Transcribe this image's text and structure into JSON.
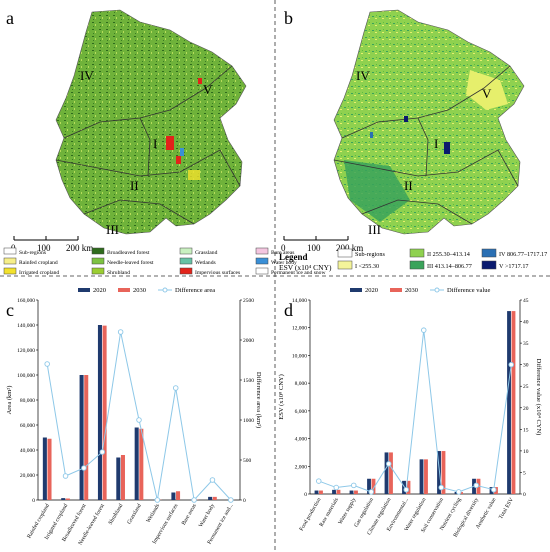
{
  "panels": {
    "a": {
      "letter": "a",
      "regions": [
        "IV",
        "V",
        "I",
        "II",
        "III"
      ],
      "scale": {
        "ticks": [
          "0",
          "100",
          "200 km"
        ]
      },
      "legend": [
        {
          "label": "Sub-regions",
          "color": "#ffffff"
        },
        {
          "label": "Rainfed cropland",
          "color": "#f6ef8a"
        },
        {
          "label": "Irrigated cropland",
          "color": "#f2e12c"
        },
        {
          "label": "Broadleaved forest",
          "color": "#2f6b1d"
        },
        {
          "label": "Needle-leaved forest",
          "color": "#7dc242"
        },
        {
          "label": "Shrubland",
          "color": "#9acd32"
        },
        {
          "label": "Grassland",
          "color": "#c9f0c0"
        },
        {
          "label": "Wetlands",
          "color": "#66c2a5"
        },
        {
          "label": "Impervious surfaces",
          "color": "#e2231a"
        },
        {
          "label": "Bare areas",
          "color": "#f4c6e0"
        },
        {
          "label": "Water body",
          "color": "#3a8fd6"
        },
        {
          "label": "Permanent ice and snow",
          "color": "#ffffff"
        }
      ]
    },
    "b": {
      "letter": "b",
      "regions": [
        "IV",
        "V",
        "I",
        "II",
        "III"
      ],
      "scale": {
        "ticks": [
          "0",
          "100",
          "200 km"
        ]
      },
      "legend_title": "Legend",
      "legend_subtitle": "ESV (x10⁴ CNY)",
      "legend": [
        {
          "label": "Sub-regions",
          "color": "#ffffff"
        },
        {
          "label": "I <255.30",
          "color": "#f4f49a"
        },
        {
          "label": "II 255.30–413.14",
          "color": "#8fd14f"
        },
        {
          "label": "III 413.14–806.77",
          "color": "#3aa35a"
        },
        {
          "label": "IV 806.77–1717.17",
          "color": "#2a6fb3"
        },
        {
          "label": "V >1717.17",
          "color": "#0a1a6e"
        }
      ]
    },
    "c": {
      "letter": "c",
      "legend": [
        "2020",
        "2030",
        "Difference area"
      ]
    },
    "d": {
      "letter": "d",
      "legend": [
        "2020",
        "2030",
        "Difference value"
      ]
    }
  },
  "colors": {
    "s2020": "#1f3a6e",
    "s2030": "#e8645a",
    "diff": "#8ec8e8"
  },
  "chart_data": [
    {
      "type": "bar",
      "panel": "c",
      "categories": [
        "Rainfed cropland",
        "Irrigated cropland",
        "Broadleaved forest",
        "Needle-leaved forest",
        "Shrubland",
        "Grassland",
        "Wetlands",
        "Impervious surfaces",
        "Bare areas",
        "Water body",
        "Permanent ice and..."
      ],
      "series": [
        {
          "name": "2020",
          "values": [
            50000,
            1500,
            100000,
            140000,
            34000,
            58000,
            200,
            6000,
            300,
            2500,
            100
          ]
        },
        {
          "name": "2030",
          "values": [
            49000,
            1200,
            100000,
            139500,
            36000,
            57000,
            200,
            7000,
            300,
            2500,
            100
          ]
        },
        {
          "name": "Difference area",
          "axis": "right",
          "values": [
            1700,
            300,
            400,
            600,
            2100,
            1000,
            0,
            1400,
            0,
            250,
            0
          ]
        }
      ],
      "ylabel": "Area (km²)",
      "ylabel_right": "Difference area (km²)",
      "ylim": [
        0,
        160000
      ],
      "ylim_right": [
        0,
        2500
      ],
      "yticks": [
        "0",
        "20,000",
        "40,000",
        "60,000",
        "80,000",
        "100,000",
        "120,000",
        "140,000",
        "160,000"
      ],
      "yticks_right": [
        "0",
        "500",
        "1000",
        "1500",
        "2000",
        "2500"
      ]
    },
    {
      "type": "bar",
      "panel": "d",
      "categories": [
        "Food production",
        "Raw materials",
        "Water supply",
        "Gas regulation",
        "Climate regulation",
        "Environmental...",
        "Water regulation",
        "Soil conservation",
        "Nutrient cycling",
        "Biological diversity",
        "Aesthetic value",
        "Total ESV"
      ],
      "series": [
        {
          "name": "2020",
          "values": [
            250,
            300,
            250,
            1100,
            3000,
            950,
            2500,
            3100,
            150,
            1100,
            500,
            13200
          ]
        },
        {
          "name": "2030",
          "values": [
            250,
            300,
            250,
            1100,
            3000,
            950,
            2500,
            3100,
            150,
            1100,
            500,
            13200
          ]
        },
        {
          "name": "Difference value",
          "axis": "right",
          "values": [
            3,
            1.5,
            2,
            0.5,
            7,
            1,
            38,
            1.5,
            0.5,
            2,
            1,
            30
          ]
        }
      ],
      "ylabel": "ESV (x10⁸ CNY)",
      "ylabel_right": "Difference value (x10⁴ CYN)",
      "ylim": [
        0,
        14000
      ],
      "ylim_right": [
        0,
        45
      ],
      "yticks": [
        "0",
        "2,000",
        "4,000",
        "6,000",
        "8,000",
        "10,000",
        "12,000",
        "14,000"
      ],
      "yticks_right": [
        "0",
        "5",
        "10",
        "15",
        "20",
        "25",
        "30",
        "35",
        "40",
        "45"
      ]
    }
  ]
}
